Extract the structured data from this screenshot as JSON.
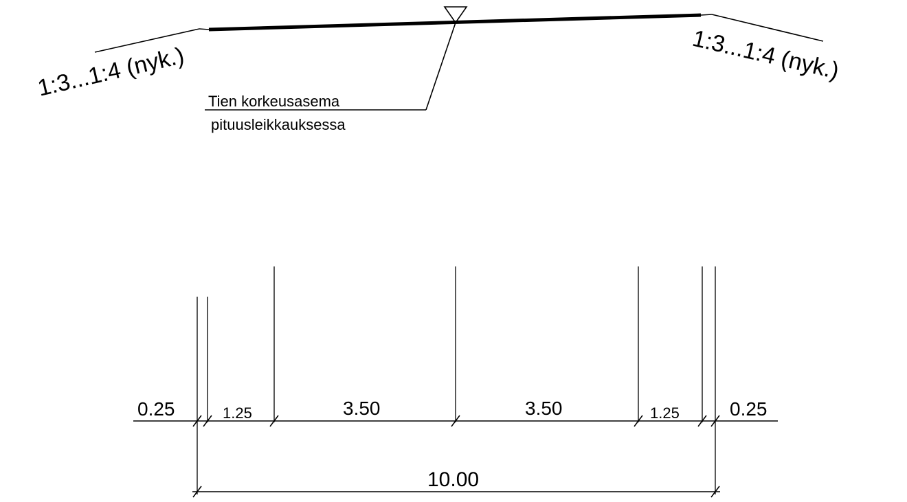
{
  "slope_left": "1:3...1:4 (nyk.)",
  "slope_right": "1:3...1:4 (nyk.)",
  "elevation_note": {
    "line1": "Tien korkeusasema",
    "line2": "pituusleikkauksessa"
  },
  "dimensions": {
    "left_edge": "0.25",
    "left_shoulder": "1.25",
    "left_lane": "3.50",
    "right_lane": "3.50",
    "right_shoulder": "1.25",
    "right_edge": "0.25",
    "total": "10.00"
  }
}
